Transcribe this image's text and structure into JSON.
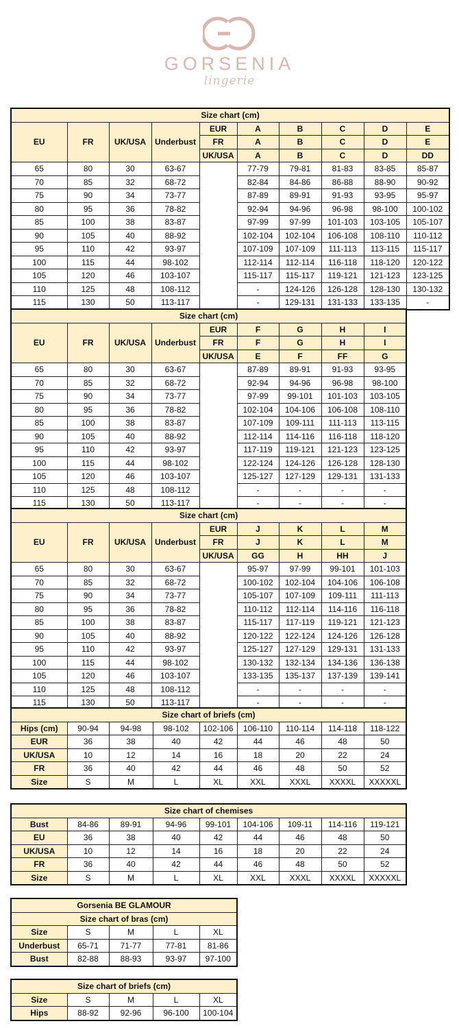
{
  "logo": {
    "brand": "GORSENIA",
    "sub": "lingerie",
    "color": "#d9b7ac"
  },
  "colors": {
    "header_fill": "#fdf0ca",
    "border": "#111111"
  },
  "bra_tables": [
    {
      "title": "Size chart (cm)",
      "left_headers": [
        "EU",
        "FR",
        "UK/USA",
        "Underbust"
      ],
      "cup_rows": [
        {
          "label": "EUR",
          "cups": [
            "A",
            "B",
            "C",
            "D",
            "E"
          ]
        },
        {
          "label": "FR",
          "cups": [
            "A",
            "B",
            "C",
            "D",
            "E"
          ]
        },
        {
          "label": "UK/USA",
          "cups": [
            "A",
            "B",
            "C",
            "D",
            "DD"
          ]
        }
      ],
      "rows": [
        [
          "65",
          "80",
          "30",
          "63-67",
          [
            "77-79",
            "79-81",
            "81-83",
            "83-85",
            "85-87"
          ]
        ],
        [
          "70",
          "85",
          "32",
          "68-72",
          [
            "82-84",
            "84-86",
            "86-88",
            "88-90",
            "90-92"
          ]
        ],
        [
          "75",
          "90",
          "34",
          "73-77",
          [
            "87-89",
            "89-91",
            "91-93",
            "93-95",
            "95-97"
          ]
        ],
        [
          "80",
          "95",
          "36",
          "78-82",
          [
            "92-94",
            "94-96",
            "96-98",
            "98-100",
            "100-102"
          ]
        ],
        [
          "85",
          "100",
          "38",
          "83-87",
          [
            "97-99",
            "97-99",
            "101-103",
            "103-105",
            "105-107"
          ]
        ],
        [
          "90",
          "105",
          "40",
          "88-92",
          [
            "102-104",
            "102-104",
            "106-108",
            "108-110",
            "110-112"
          ]
        ],
        [
          "95",
          "110",
          "42",
          "93-97",
          [
            "107-109",
            "107-109",
            "111-113",
            "113-115",
            "115-117"
          ]
        ],
        [
          "100",
          "115",
          "44",
          "98-102",
          [
            "112-114",
            "112-114",
            "116-118",
            "118-120",
            "120-122"
          ]
        ],
        [
          "105",
          "120",
          "46",
          "103-107",
          [
            "115-117",
            "115-117",
            "119-121",
            "121-123",
            "123-125"
          ]
        ],
        [
          "110",
          "125",
          "48",
          "108-112",
          [
            "-",
            "124-126",
            "126-128",
            "128-130",
            "130-132"
          ]
        ],
        [
          "115",
          "130",
          "50",
          "113-117",
          [
            "-",
            "129-131",
            "131-133",
            "133-135",
            "-"
          ]
        ]
      ]
    },
    {
      "title": "Size chart (cm)",
      "left_headers": [
        "EU",
        "FR",
        "UK/USA",
        "Underbust"
      ],
      "cup_rows": [
        {
          "label": "EUR",
          "cups": [
            "F",
            "G",
            "H",
            "I"
          ]
        },
        {
          "label": "FR",
          "cups": [
            "F",
            "G",
            "H",
            "I"
          ]
        },
        {
          "label": "UK/USA",
          "cups": [
            "E",
            "F",
            "FF",
            "G"
          ]
        }
      ],
      "rows": [
        [
          "65",
          "80",
          "30",
          "63-67",
          [
            "87-89",
            "89-91",
            "91-93",
            "93-95"
          ]
        ],
        [
          "70",
          "85",
          "32",
          "68-72",
          [
            "92-94",
            "94-96",
            "96-98",
            "98-100"
          ]
        ],
        [
          "75",
          "90",
          "34",
          "73-77",
          [
            "97-99",
            "99-101",
            "101-103",
            "103-105"
          ]
        ],
        [
          "80",
          "95",
          "36",
          "78-82",
          [
            "102-104",
            "104-106",
            "106-108",
            "108-110"
          ]
        ],
        [
          "85",
          "100",
          "38",
          "83-87",
          [
            "107-109",
            "109-111",
            "111-113",
            "113-115"
          ]
        ],
        [
          "90",
          "105",
          "40",
          "88-92",
          [
            "112-114",
            "114-116",
            "116-118",
            "118-120"
          ]
        ],
        [
          "95",
          "110",
          "42",
          "93-97",
          [
            "117-119",
            "119-121",
            "121-123",
            "123-125"
          ]
        ],
        [
          "100",
          "115",
          "44",
          "98-102",
          [
            "122-124",
            "124-126",
            "126-128",
            "128-130"
          ]
        ],
        [
          "105",
          "120",
          "46",
          "103-107",
          [
            "125-127",
            "127-129",
            "129-131",
            "131-133"
          ]
        ],
        [
          "110",
          "125",
          "48",
          "108-112",
          [
            "-",
            "-",
            "-",
            "-"
          ]
        ],
        [
          "115",
          "130",
          "50",
          "113-117",
          [
            "-",
            "-",
            "-",
            "-"
          ]
        ]
      ]
    },
    {
      "title": "Size chart (cm)",
      "left_headers": [
        "EU",
        "FR",
        "UK/USA",
        "Underbust"
      ],
      "cup_rows": [
        {
          "label": "EUR",
          "cups": [
            "J",
            "K",
            "L",
            "M"
          ]
        },
        {
          "label": "FR",
          "cups": [
            "J",
            "K",
            "L",
            "M"
          ]
        },
        {
          "label": "UK/USA",
          "cups": [
            "GG",
            "H",
            "HH",
            "J"
          ]
        }
      ],
      "rows": [
        [
          "65",
          "80",
          "30",
          "63-67",
          [
            "95-97",
            "97-99",
            "99-101",
            "101-103"
          ]
        ],
        [
          "70",
          "85",
          "32",
          "68-72",
          [
            "100-102",
            "102-104",
            "104-106",
            "106-108"
          ]
        ],
        [
          "75",
          "90",
          "34",
          "73-77",
          [
            "105-107",
            "107-109",
            "109-111",
            "111-113"
          ]
        ],
        [
          "80",
          "95",
          "36",
          "78-82",
          [
            "110-112",
            "112-114",
            "114-116",
            "116-118"
          ]
        ],
        [
          "85",
          "100",
          "38",
          "83-87",
          [
            "115-117",
            "117-119",
            "119-121",
            "121-123"
          ]
        ],
        [
          "90",
          "105",
          "40",
          "88-92",
          [
            "120-122",
            "122-124",
            "124-126",
            "126-128"
          ]
        ],
        [
          "95",
          "110",
          "42",
          "93-97",
          [
            "125-127",
            "127-129",
            "129-131",
            "131-133"
          ]
        ],
        [
          "100",
          "115",
          "44",
          "98-102",
          [
            "130-132",
            "132-134",
            "134-136",
            "136-138"
          ]
        ],
        [
          "105",
          "120",
          "46",
          "103-107",
          [
            "133-135",
            "135-137",
            "137-139",
            "139-141"
          ]
        ],
        [
          "110",
          "125",
          "48",
          "108-112",
          [
            "-",
            "-",
            "-",
            "-"
          ]
        ],
        [
          "115",
          "130",
          "50",
          "113-117",
          [
            "-",
            "-",
            "-",
            "-"
          ]
        ]
      ]
    }
  ],
  "simple_tables": [
    {
      "titles": [
        "Size chart of briefs (cm)"
      ],
      "rows": [
        {
          "label": "Hips (cm)",
          "values": [
            "90-94",
            "94-98",
            "98-102",
            "102-106",
            "106-110",
            "110-114",
            "114-118",
            "118-122"
          ]
        },
        {
          "label": "EUR",
          "values": [
            "36",
            "38",
            "40",
            "42",
            "44",
            "46",
            "48",
            "50"
          ]
        },
        {
          "label": "UK/USA",
          "values": [
            "10",
            "12",
            "14",
            "16",
            "18",
            "20",
            "22",
            "24"
          ]
        },
        {
          "label": "FR",
          "values": [
            "36",
            "40",
            "42",
            "44",
            "46",
            "48",
            "50",
            "52"
          ]
        },
        {
          "label": "Size",
          "values": [
            "S",
            "M",
            "L",
            "XL",
            "XXL",
            "XXXL",
            "XXXXL",
            "XXXXXL"
          ]
        }
      ]
    },
    {
      "titles": [
        "Size chart of chemises"
      ],
      "rows": [
        {
          "label": "Bust",
          "values": [
            "84-86",
            "89-91",
            "94-96",
            "99-101",
            "104-106",
            "109-11",
            "114-116",
            "119-121"
          ]
        },
        {
          "label": "EU",
          "values": [
            "36",
            "38",
            "40",
            "42",
            "44",
            "46",
            "48",
            "50"
          ]
        },
        {
          "label": "UK/USA",
          "values": [
            "10",
            "12",
            "14",
            "16",
            "18",
            "20",
            "22",
            "24"
          ]
        },
        {
          "label": "FR",
          "values": [
            "36",
            "40",
            "42",
            "44",
            "46",
            "48",
            "50",
            "52"
          ]
        },
        {
          "label": "Size",
          "values": [
            "S",
            "M",
            "L",
            "XL",
            "XXL",
            "XXXL",
            "XXXXL",
            "XXXXXL"
          ]
        }
      ]
    },
    {
      "titles": [
        "Gorsenia BE GLAMOUR",
        "Size chart of bras (cm)"
      ],
      "rows": [
        {
          "label": "Size",
          "values": [
            "S",
            "M",
            "L",
            "XL"
          ]
        },
        {
          "label": "Underbust",
          "values": [
            "65-71",
            "71-77",
            "77-81",
            "81-86"
          ]
        },
        {
          "label": "Bust",
          "values": [
            "82-88",
            "88-93",
            "93-97",
            "97-100"
          ]
        }
      ]
    },
    {
      "titles": [
        "Size chart of briefs (cm)"
      ],
      "rows": [
        {
          "label": "Size",
          "values": [
            "S",
            "M",
            "L",
            "XL"
          ]
        },
        {
          "label": "Hips",
          "values": [
            "88-92",
            "92-96",
            "96-100",
            "100-104"
          ]
        }
      ]
    }
  ]
}
